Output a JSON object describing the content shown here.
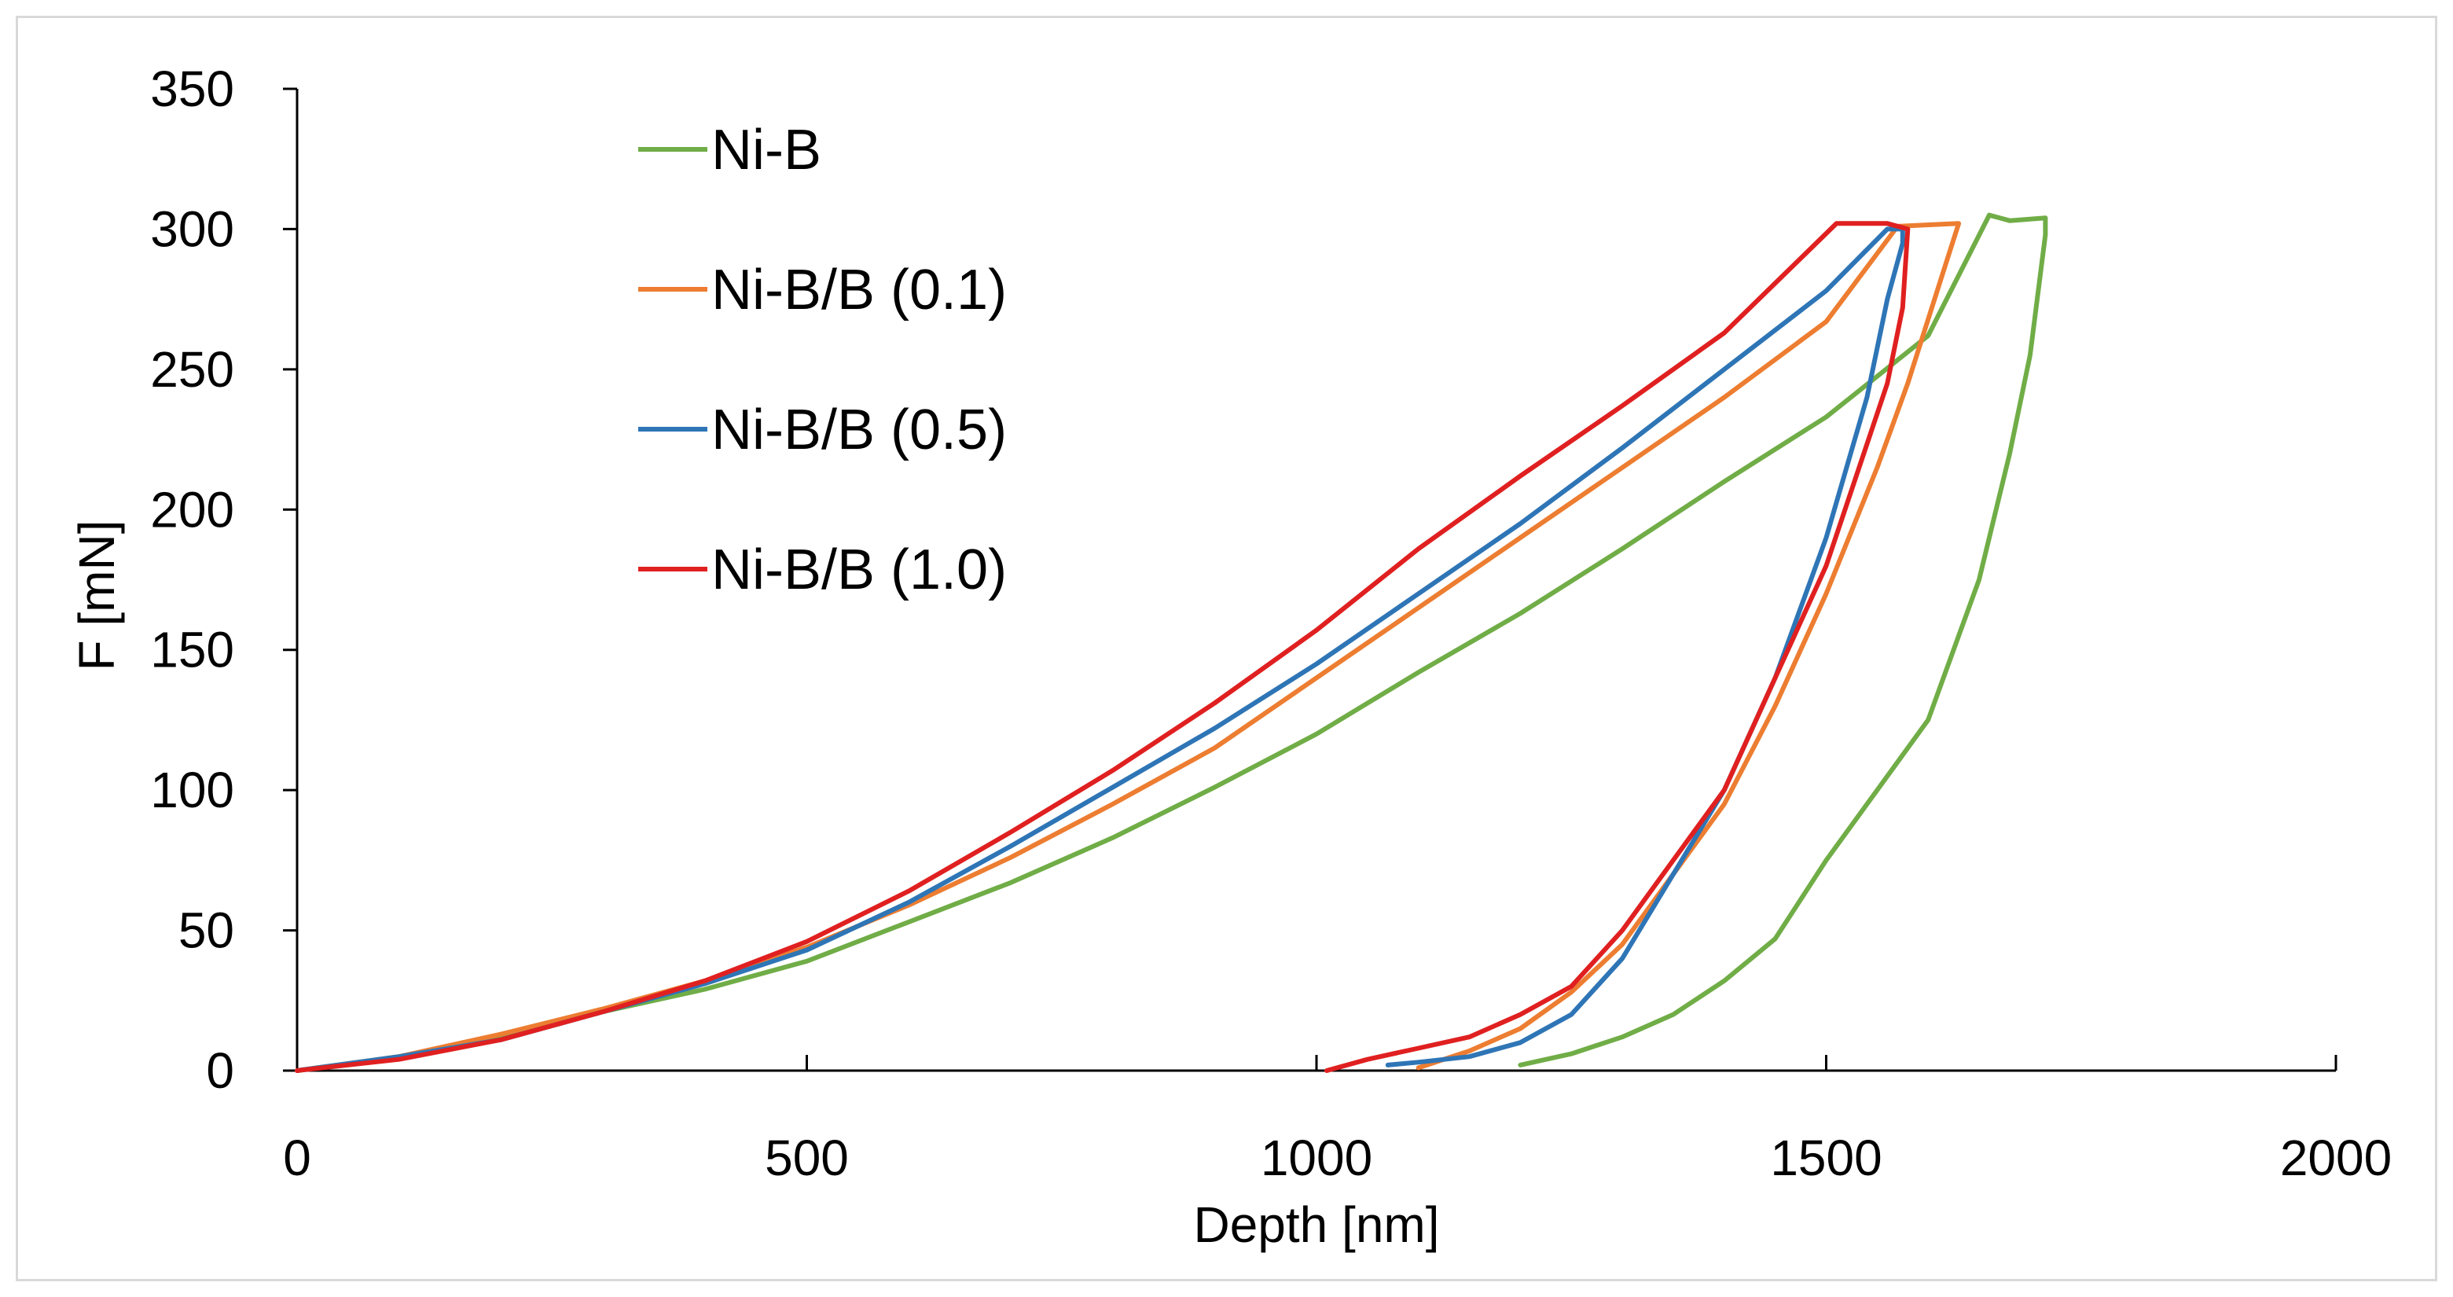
{
  "chart_data": {
    "type": "line",
    "title": "",
    "xlabel": "Depth [nm]",
    "ylabel": "F [mN]",
    "xlim": [
      0,
      2000
    ],
    "ylim": [
      0,
      350
    ],
    "xticks": [
      0,
      500,
      1000,
      1500,
      2000
    ],
    "yticks": [
      0,
      50,
      100,
      150,
      200,
      250,
      300,
      350
    ],
    "grid": false,
    "legend_position": "top-left",
    "series": [
      {
        "name": "Ni-B",
        "color": "#70ad47",
        "x": [
          0,
          100,
          200,
          300,
          400,
          500,
          600,
          700,
          800,
          900,
          1000,
          1100,
          1200,
          1300,
          1400,
          1500,
          1600,
          1660,
          1680,
          1715,
          1715,
          1700,
          1680,
          1650,
          1600,
          1550,
          1500,
          1450,
          1400,
          1350,
          1300,
          1250,
          1200
        ],
        "y": [
          0,
          5,
          12,
          21,
          29,
          39,
          53,
          67,
          83,
          101,
          120,
          142,
          163,
          186,
          210,
          233,
          262,
          305,
          303,
          304,
          298,
          255,
          220,
          175,
          125,
          100,
          75,
          47,
          32,
          20,
          12,
          6,
          2
        ]
      },
      {
        "name": "Ni-B/B (0.1)",
        "color": "#ed7d31",
        "x": [
          0,
          100,
          200,
          300,
          400,
          500,
          600,
          700,
          800,
          900,
          1000,
          1100,
          1200,
          1300,
          1400,
          1500,
          1570,
          1630,
          1615,
          1580,
          1550,
          1500,
          1450,
          1400,
          1350,
          1300,
          1250,
          1200,
          1150,
          1100
        ],
        "y": [
          0,
          5,
          13,
          22,
          32,
          44,
          59,
          76,
          95,
          115,
          140,
          165,
          190,
          215,
          240,
          267,
          301,
          302,
          285,
          245,
          215,
          170,
          130,
          95,
          70,
          45,
          28,
          15,
          7,
          1
        ]
      },
      {
        "name": "Ni-B/B (0.5)",
        "color": "#2e75b6",
        "x": [
          0,
          100,
          200,
          300,
          400,
          500,
          600,
          700,
          800,
          900,
          1000,
          1100,
          1200,
          1300,
          1400,
          1500,
          1560,
          1575,
          1575,
          1560,
          1540,
          1500,
          1450,
          1400,
          1350,
          1300,
          1250,
          1200,
          1150,
          1100,
          1070
        ],
        "y": [
          0,
          5,
          11,
          21,
          31,
          43,
          60,
          80,
          101,
          122,
          145,
          170,
          195,
          222,
          250,
          278,
          300,
          300,
          295,
          275,
          240,
          190,
          140,
          100,
          70,
          40,
          20,
          10,
          5,
          3,
          2
        ]
      },
      {
        "name": "Ni-B/B (1.0)",
        "color": "#e02020",
        "x": [
          0,
          100,
          200,
          300,
          400,
          500,
          600,
          700,
          800,
          900,
          1000,
          1100,
          1200,
          1300,
          1400,
          1510,
          1560,
          1580,
          1575,
          1560,
          1500,
          1450,
          1400,
          1350,
          1300,
          1250,
          1200,
          1150,
          1100,
          1050,
          1010
        ],
        "y": [
          0,
          4,
          11,
          21,
          32,
          46,
          64,
          85,
          107,
          131,
          157,
          186,
          212,
          237,
          263,
          302,
          302,
          300,
          272,
          245,
          180,
          140,
          100,
          75,
          50,
          30,
          20,
          12,
          8,
          4,
          0
        ]
      }
    ]
  }
}
